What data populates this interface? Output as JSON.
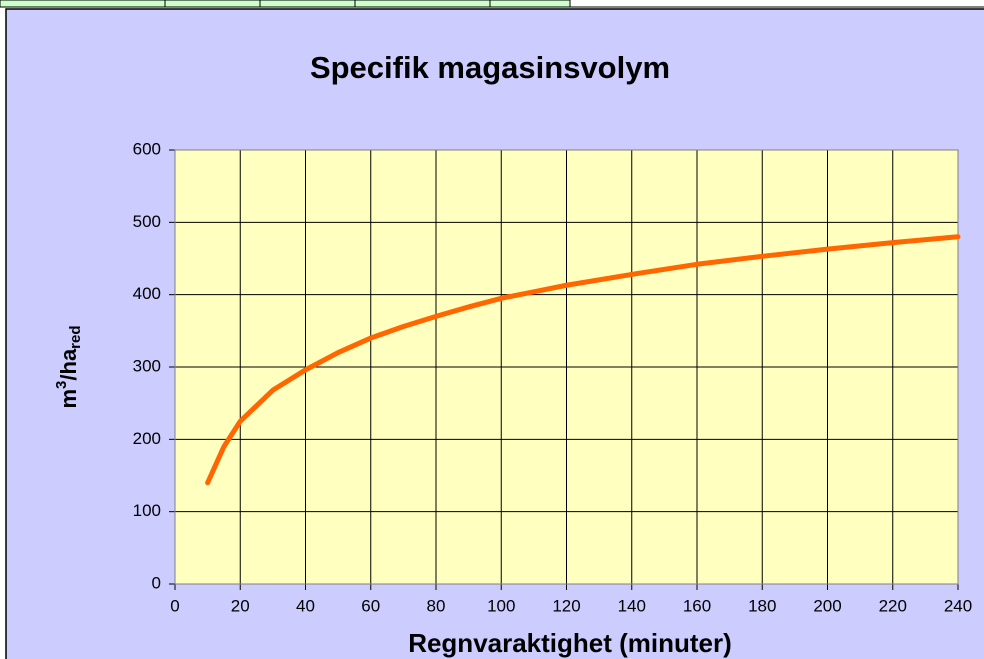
{
  "chart_data": {
    "type": "line",
    "title": "Specifik magasinsvolym",
    "xlabel": "Regnvaraktighet (minuter)",
    "ylabel": {
      "base": "m",
      "sup": "3",
      "mid": "/ha",
      "sub": "red"
    },
    "x": [
      10,
      15,
      20,
      30,
      40,
      50,
      60,
      70,
      80,
      90,
      100,
      110,
      120,
      140,
      160,
      180,
      200,
      220,
      240
    ],
    "series": [
      {
        "name": "Specifik magasinsvolym",
        "color": "#ff6600",
        "values": [
          140,
          190,
          225,
          268,
          296,
          320,
          340,
          356,
          370,
          383,
          395,
          404,
          413,
          428,
          442,
          453,
          463,
          472,
          480
        ]
      }
    ],
    "xlim": [
      0,
      240
    ],
    "xticks": [
      0,
      20,
      40,
      60,
      80,
      100,
      120,
      140,
      160,
      180,
      200,
      220,
      240
    ],
    "ylim": [
      0,
      600
    ],
    "yticks": [
      0,
      100,
      200,
      300,
      400,
      500,
      600
    ],
    "grid": true
  }
}
